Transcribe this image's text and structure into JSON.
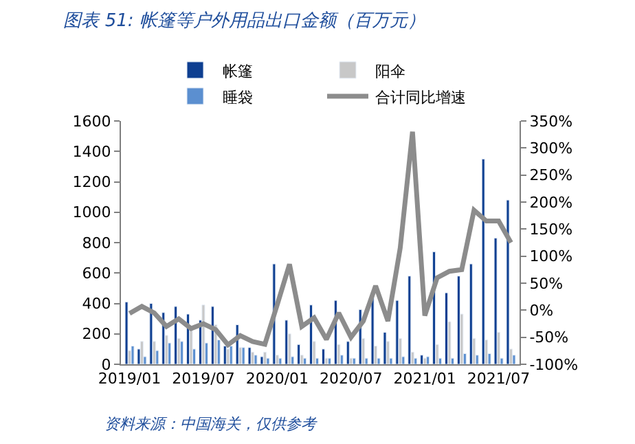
{
  "chart_data": {
    "type": "bar",
    "title": "图表 51: 帐篷等户外用品出口金额（百万元）",
    "categories": [
      "2019/01",
      null,
      null,
      null,
      null,
      null,
      "2019/07",
      null,
      null,
      null,
      null,
      null,
      "2020/01",
      null,
      null,
      null,
      null,
      null,
      "2020/07",
      null,
      null,
      null,
      null,
      null,
      "2021/01",
      null,
      null,
      null,
      null,
      null,
      "2021/07",
      null
    ],
    "series": [
      {
        "name": "帐篷",
        "color": "#0e3f91",
        "values": [
          410,
          100,
          400,
          340,
          380,
          330,
          290,
          380,
          120,
          260,
          110,
          50,
          660,
          290,
          130,
          390,
          100,
          420,
          150,
          360,
          450,
          210,
          420,
          580,
          60,
          740,
          470,
          580,
          660,
          1350,
          830,
          1080
        ]
      },
      {
        "name": "阳伞",
        "color": "#c8c8c8",
        "values": [
          90,
          150,
          150,
          190,
          170,
          230,
          390,
          260,
          100,
          110,
          80,
          80,
          60,
          200,
          60,
          150,
          40,
          130,
          40,
          170,
          120,
          150,
          170,
          80,
          40,
          130,
          280,
          330,
          170,
          160,
          210,
          100
        ]
      },
      {
        "name": "睡袋",
        "color": "#5b8fd0",
        "values": [
          120,
          50,
          90,
          140,
          150,
          100,
          140,
          160,
          120,
          110,
          60,
          40,
          40,
          50,
          40,
          40,
          40,
          60,
          40,
          40,
          40,
          40,
          50,
          40,
          50,
          40,
          40,
          70,
          60,
          70,
          40,
          60
        ]
      },
      {
        "name": "合计同比增速",
        "type": "line",
        "axis": "y2",
        "color": "#8c8c8c",
        "marker": "none",
        "values": [
          -6,
          7,
          -5,
          -30,
          -16,
          -34,
          -25,
          -36,
          -64,
          -47,
          -58,
          -63,
          10,
          85,
          -30,
          -14,
          -54,
          -5,
          -50,
          -20,
          45,
          -20,
          115,
          330,
          -10,
          60,
          72,
          75,
          185,
          165,
          165,
          125
        ]
      }
    ],
    "ylim": [
      0,
      1600
    ],
    "yticks": [
      0,
      200,
      400,
      600,
      800,
      1000,
      1200,
      1400,
      1600
    ],
    "y2lim": [
      -100,
      350
    ],
    "y2ticks": [
      {
        "value": -100,
        "label": "-100%"
      },
      {
        "value": -50,
        "label": "-50%"
      },
      {
        "value": 0,
        "label": "0%"
      },
      {
        "value": 50,
        "label": "50%"
      },
      {
        "value": 100,
        "label": "100%"
      },
      {
        "value": 150,
        "label": "150%"
      },
      {
        "value": 200,
        "label": "200%"
      },
      {
        "value": 250,
        "label": "250%"
      },
      {
        "value": 300,
        "label": "300%"
      },
      {
        "value": 350,
        "label": "350%"
      }
    ],
    "legend": "top",
    "annotations": [
      "资料来源：中国海关，仅供参考"
    ]
  }
}
